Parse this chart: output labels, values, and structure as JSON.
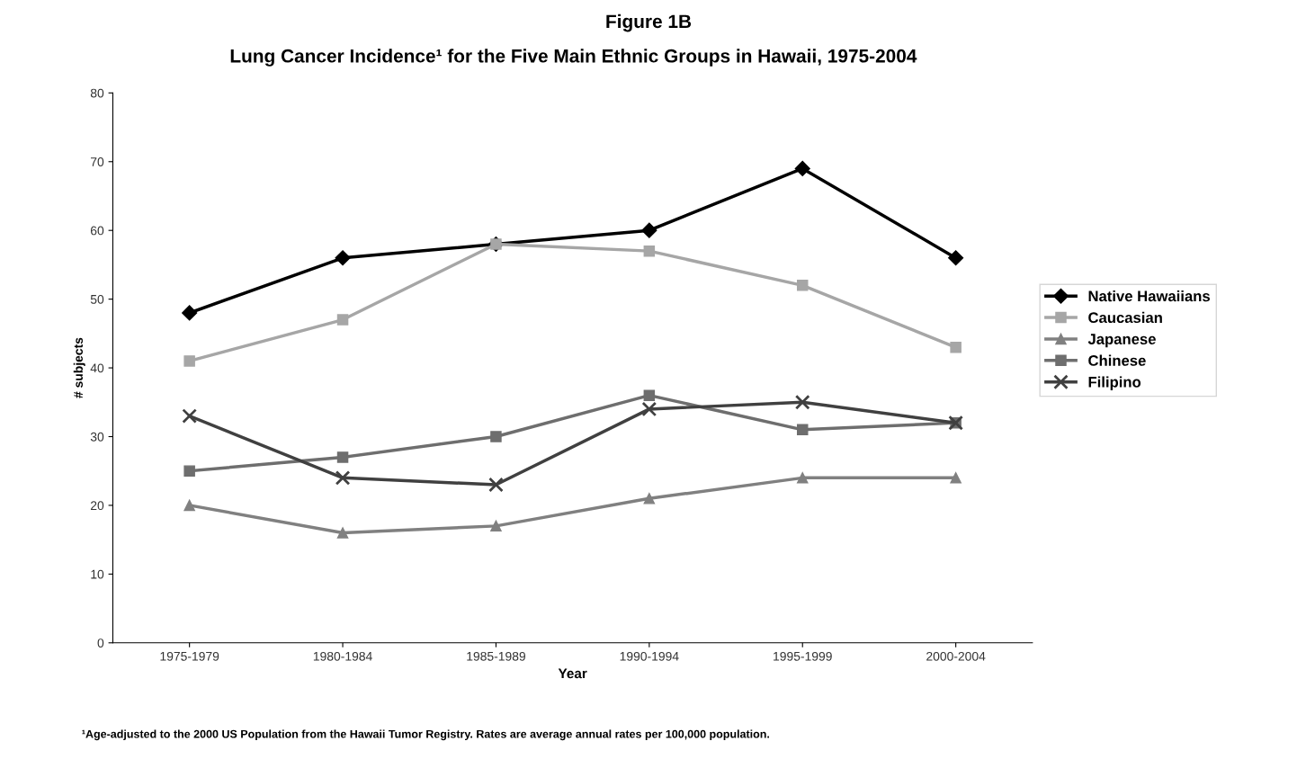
{
  "chart_data": {
    "type": "line",
    "title": "Figure 1B",
    "subtitle": "Lung Cancer Incidence¹ for the Five Main Ethnic Groups in Hawaii, 1975-2004",
    "xlabel": "Year",
    "ylabel": "# subjects",
    "categories": [
      "1975-1979",
      "1980-1984",
      "1985-1989",
      "1990-1994",
      "1995-1999",
      "2000-2004"
    ],
    "series": [
      {
        "name": "Native Hawaiians",
        "color": "#000000",
        "marker": "diamond",
        "values": [
          48,
          56,
          58,
          60,
          69,
          56
        ]
      },
      {
        "name": "Caucasian",
        "color": "#a6a6a6",
        "marker": "square",
        "values": [
          41,
          47,
          58,
          57,
          52,
          43
        ]
      },
      {
        "name": "Japanese",
        "color": "#808080",
        "marker": "triangle",
        "values": [
          20,
          16,
          17,
          21,
          24,
          24
        ]
      },
      {
        "name": "Chinese",
        "color": "#6e6e6e",
        "marker": "square",
        "values": [
          25,
          27,
          30,
          36,
          31,
          32
        ]
      },
      {
        "name": "Filipino",
        "color": "#404040",
        "marker": "cross",
        "values": [
          33,
          24,
          23,
          34,
          35,
          32
        ]
      }
    ],
    "ylim": [
      0,
      80
    ],
    "yticks": [
      0,
      10,
      20,
      30,
      40,
      50,
      60,
      70,
      80
    ],
    "grid": false,
    "legend": "right",
    "annotations": [
      "¹Age-adjusted to the 2000 US Population from the Hawaii Tumor Registry. Rates are average annual rates per 100,000 population."
    ]
  }
}
